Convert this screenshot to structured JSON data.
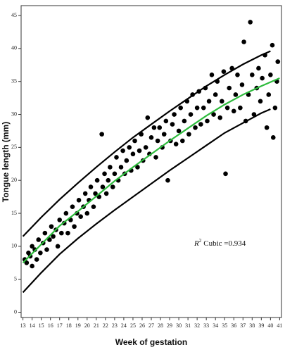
{
  "chart_data": {
    "type": "scatter",
    "x_label": "Week of gestation",
    "y_label": "Tongue length (mm)",
    "annotation": {
      "symbol": "R",
      "superscript": "2",
      "text": "Cubic =0.934"
    },
    "xlim": [
      12.8,
      41.2
    ],
    "ylim": [
      -0.8,
      46.5
    ],
    "xticks": [
      13,
      14,
      15,
      16,
      17,
      18,
      19,
      20,
      21,
      22,
      23,
      24,
      25,
      26,
      27,
      28,
      29,
      30,
      31,
      32,
      33,
      34,
      35,
      36,
      37,
      38,
      39,
      40,
      41
    ],
    "yticks": [
      0,
      5,
      10,
      15,
      20,
      25,
      30,
      35,
      40,
      45
    ],
    "points": {
      "color": "#000000",
      "x": [
        13.2,
        13.4,
        13.6,
        13.8,
        14,
        14,
        14.3,
        14.5,
        14.7,
        14.9,
        15.2,
        15.4,
        15.6,
        15.9,
        16.1,
        16.3,
        16.6,
        16.8,
        17,
        17.2,
        17.5,
        17.7,
        17.9,
        18.2,
        18.4,
        18.6,
        18.9,
        19.1,
        19.3,
        19.6,
        19.8,
        20,
        20.2,
        20.4,
        20.7,
        20.9,
        21.1,
        21.3,
        21.6,
        21.7,
        21.9,
        22.1,
        22.3,
        22.5,
        22.8,
        23,
        23.2,
        23.4,
        23.7,
        23.9,
        24.1,
        24.3,
        24.6,
        24.8,
        25,
        25.2,
        25.5,
        25.7,
        25.9,
        26.1,
        26.4,
        26.6,
        26.8,
        27,
        27.3,
        27.5,
        27.7,
        27.9,
        28.2,
        28.4,
        28.6,
        28.8,
        29.1,
        29.3,
        29.5,
        29.7,
        30,
        30.2,
        30.4,
        30.6,
        30.9,
        31.1,
        31.3,
        31.5,
        31.8,
        32,
        32.2,
        32.4,
        32.7,
        32.9,
        33.1,
        33.3,
        33.6,
        33.8,
        34,
        34.2,
        34.5,
        34.7,
        34.9,
        35.1,
        35.3,
        35.5,
        35.8,
        36,
        36.2,
        36.4,
        36.7,
        36.9,
        37.1,
        37.3,
        37.6,
        37.8,
        38,
        38.2,
        38.5,
        38.7,
        38.9,
        39.1,
        39.4,
        39.6,
        39.8,
        40,
        40.2,
        40.3,
        40.5,
        40.7,
        40.8
      ],
      "y": [
        8,
        7.5,
        9,
        8.5,
        10,
        7,
        9.5,
        8,
        11,
        9,
        10.5,
        12,
        9.5,
        11,
        13,
        11.5,
        12.5,
        10,
        14,
        12,
        13.5,
        15,
        12,
        14,
        16,
        13,
        15,
        17,
        14.5,
        16,
        18,
        15,
        17,
        19,
        16,
        18,
        20,
        17.5,
        27,
        19,
        21,
        18,
        20,
        22,
        19,
        21,
        23.5,
        20,
        22,
        24.5,
        21,
        23,
        25,
        21.5,
        24,
        26,
        22,
        24.5,
        27,
        23,
        25,
        29.5,
        24,
        26.5,
        28,
        23.5,
        26,
        28,
        25,
        27,
        29,
        20,
        26,
        28.5,
        30,
        25.5,
        27.5,
        31,
        26,
        29,
        32,
        27,
        30,
        33,
        28,
        31,
        33.5,
        28.5,
        31,
        34,
        29,
        32,
        36,
        30,
        33,
        35,
        29.5,
        32,
        36.5,
        21,
        31,
        34,
        37,
        30.5,
        33,
        36,
        31,
        34.5,
        41,
        29,
        33,
        44,
        36,
        30,
        34,
        37,
        32,
        35.5,
        39,
        28,
        33,
        36,
        40.5,
        26.5,
        31,
        35,
        38
      ]
    },
    "curves": [
      {
        "color": "#2dbb3c",
        "x": [
          13,
          15,
          17,
          19,
          21,
          23,
          25,
          27,
          29,
          31,
          33,
          35,
          37,
          39,
          41
        ],
        "y": [
          7.5,
          10.3,
          13.1,
          15.3,
          17.6,
          19.9,
          22,
          24,
          26,
          27.9,
          29.8,
          31.5,
          33,
          34.3,
          35.5
        ]
      },
      {
        "color": "#000000",
        "x": [
          13,
          15,
          17,
          19,
          21,
          23,
          25,
          27,
          29,
          31,
          33,
          35,
          37,
          39,
          40
        ],
        "y": [
          11.5,
          14.4,
          17.1,
          19.6,
          22,
          24.3,
          26.5,
          28.5,
          30.5,
          32.4,
          34.3,
          36,
          37.6,
          39,
          39.6
        ]
      },
      {
        "color": "#000000",
        "x": [
          13,
          15,
          17,
          19,
          21,
          23,
          25,
          27,
          29,
          31,
          33,
          35,
          37,
          39,
          40
        ],
        "y": [
          3,
          6,
          8.8,
          11.2,
          13.4,
          15.5,
          17.5,
          19.5,
          21.5,
          23.4,
          25.3,
          27.2,
          28.7,
          30.2,
          30.8
        ]
      }
    ]
  }
}
